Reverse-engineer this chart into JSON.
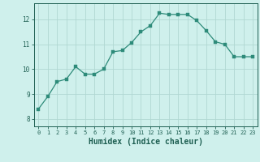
{
  "x": [
    0,
    1,
    2,
    3,
    4,
    5,
    6,
    7,
    8,
    9,
    10,
    11,
    12,
    13,
    14,
    15,
    16,
    17,
    18,
    19,
    20,
    21,
    22,
    23
  ],
  "y": [
    8.4,
    8.9,
    9.5,
    9.6,
    10.1,
    9.8,
    9.8,
    10.0,
    10.7,
    10.75,
    11.07,
    11.5,
    11.75,
    12.25,
    12.2,
    12.2,
    12.2,
    11.95,
    11.55,
    11.1,
    11.0,
    10.5,
    10.5,
    10.5
  ],
  "line_color": "#2e8b7a",
  "marker": "s",
  "marker_size": 2.2,
  "bg_color": "#cff0ec",
  "grid_color": "#b0d8d2",
  "tick_color": "#1e5f52",
  "xlabel": "Humidex (Indice chaleur)",
  "xlabel_fontsize": 7,
  "ylabel_ticks": [
    8,
    9,
    10,
    11,
    12
  ],
  "xlim": [
    -0.5,
    23.5
  ],
  "ylim": [
    7.7,
    12.65
  ],
  "title": ""
}
